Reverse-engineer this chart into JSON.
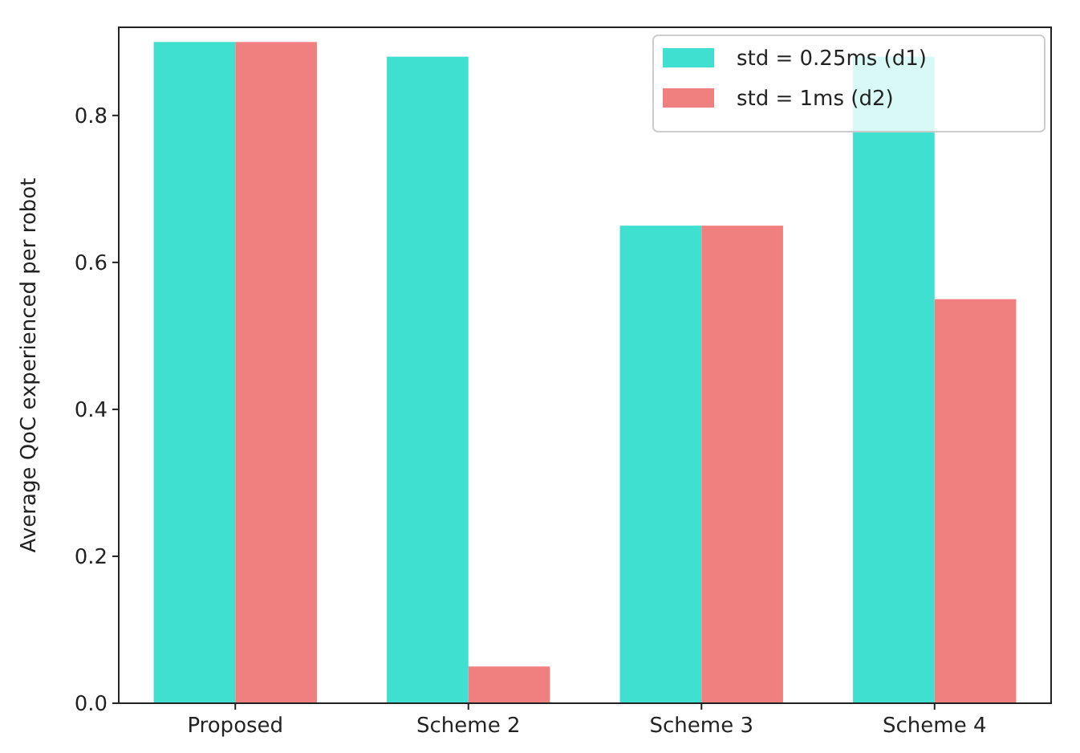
{
  "chart_data": {
    "type": "bar",
    "ylabel": "Average QoC experienced per robot",
    "categories": [
      "Proposed",
      "Scheme 2",
      "Scheme 3",
      "Scheme 4"
    ],
    "series": [
      {
        "name": "std = 0.25ms (d1)",
        "color": "#40e0d0",
        "values": [
          0.9,
          0.88,
          0.65,
          0.88
        ]
      },
      {
        "name": "std = 1ms (d2)",
        "color": "#f08080",
        "values": [
          0.9,
          0.05,
          0.65,
          0.55
        ]
      }
    ],
    "ylim": [
      0,
      0.92
    ],
    "yticks": [
      {
        "value": 0,
        "label": "0.0"
      },
      {
        "value": 0.2,
        "label": "0.2"
      },
      {
        "value": 0.4,
        "label": "0.4"
      },
      {
        "value": 0.6,
        "label": "0.6"
      },
      {
        "value": 0.8,
        "label": "0.8"
      }
    ],
    "grid": false,
    "legend": "top right"
  }
}
